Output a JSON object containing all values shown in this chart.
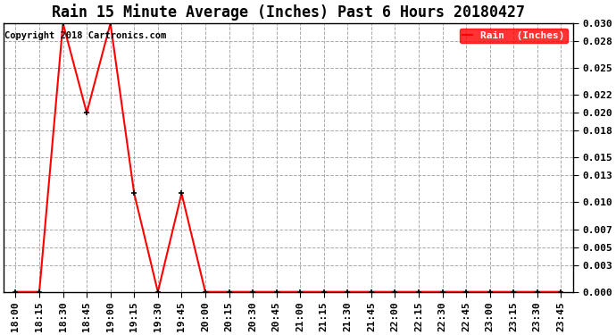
{
  "title": "Rain 15 Minute Average (Inches) Past 6 Hours 20180427",
  "copyright_text": "Copyright 2018 Cartronics.com",
  "legend_label": "Rain  (Inches)",
  "x_labels": [
    "18:00",
    "18:15",
    "18:30",
    "18:45",
    "19:00",
    "19:15",
    "19:30",
    "19:45",
    "20:00",
    "20:15",
    "20:30",
    "20:45",
    "21:00",
    "21:15",
    "21:30",
    "21:45",
    "22:00",
    "22:15",
    "22:30",
    "22:45",
    "23:00",
    "23:15",
    "23:30",
    "23:45"
  ],
  "y_values": [
    0.0,
    0.0,
    0.03,
    0.02,
    0.03,
    0.011,
    0.0,
    0.011,
    0.0,
    0.0,
    0.0,
    0.0,
    0.0,
    0.0,
    0.0,
    0.0,
    0.0,
    0.0,
    0.0,
    0.0,
    0.0,
    0.0,
    0.0,
    0.0
  ],
  "ylim": [
    0.0,
    0.03
  ],
  "yticks": [
    0.0,
    0.003,
    0.005,
    0.007,
    0.01,
    0.013,
    0.015,
    0.018,
    0.02,
    0.022,
    0.025,
    0.028,
    0.03
  ],
  "line_color": "red",
  "marker_color": "black",
  "background_color": "white",
  "grid_color": "#aaaaaa",
  "legend_bg": "red",
  "legend_text_color": "white",
  "title_fontsize": 12,
  "copyright_fontsize": 7.5,
  "tick_fontsize": 8,
  "figsize": [
    6.9,
    3.75
  ],
  "dpi": 100
}
